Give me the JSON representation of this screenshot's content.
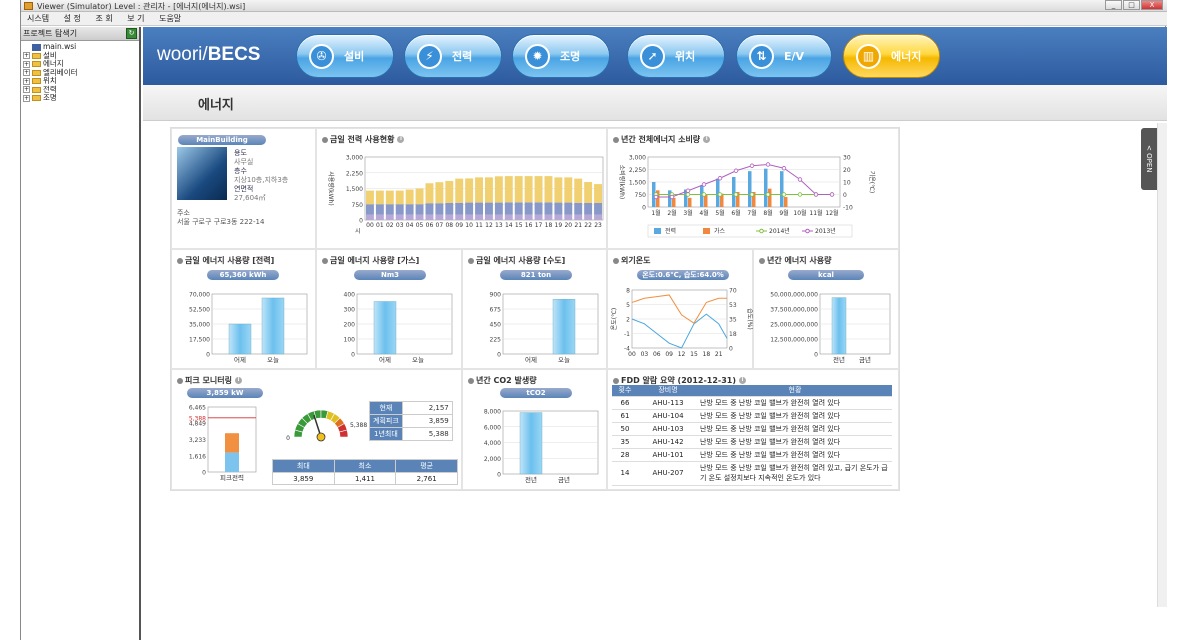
{
  "window": {
    "title": "Viewer (Simulator) Level : 관리자 - [에너지(에너지).wsi]",
    "buttons": [
      "_",
      "□",
      "X"
    ]
  },
  "menu": [
    "시스템",
    "설 정",
    "조 회",
    "보 기",
    "도움말"
  ],
  "sidebar": {
    "header": "프로젝트 탐색기",
    "root": "main.wsi",
    "items": [
      "설비",
      "에너지",
      "엘리베이터",
      "위치",
      "전력",
      "조명"
    ]
  },
  "nav": {
    "logo_a": "woori/",
    "logo_b": "BECS",
    "items": [
      {
        "label": "설비",
        "icon": "fan-icon"
      },
      {
        "label": "전력",
        "icon": "bolt-icon"
      },
      {
        "label": "조명",
        "icon": "bulb-icon"
      },
      {
        "label": "위치",
        "icon": "compass-icon"
      },
      {
        "label": "E/V",
        "icon": "elevator-icon"
      },
      {
        "label": "에너지",
        "icon": "bar-chart-icon",
        "active": true
      }
    ]
  },
  "page_title": "에너지",
  "open_tab": "< OPEN",
  "building": {
    "name": "MainBuilding",
    "use_k": "용도",
    "use_v": "사무실",
    "floors_k": "층수",
    "floors_v": "지상10층,지하3층",
    "area_k": "연면적",
    "area_v": "27,604㎡",
    "addr_k": "주소",
    "addr_v": "서울 구로구 구로3동 222-14"
  },
  "power_today": {
    "title": "금일 전력 사용현황",
    "ylabel": "사용량(kWh)",
    "xlabel": "시",
    "yticks": [
      "3,000",
      "2,250",
      "1,500",
      "750",
      "0"
    ],
    "hours": [
      "00",
      "01",
      "02",
      "03",
      "04",
      "05",
      "06",
      "07",
      "08",
      "09",
      "10",
      "11",
      "12",
      "13",
      "14",
      "15",
      "16",
      "17",
      "18",
      "19",
      "20",
      "21",
      "22",
      "23"
    ]
  },
  "annual": {
    "title": "년간 전체에너지 소비량",
    "ylabel_l": "소비량(kWh)",
    "ylabel_r": "기온(℃)",
    "yticks_l": [
      "3,000",
      "2,250",
      "1,500",
      "750",
      "0"
    ],
    "yticks_r": [
      "30",
      "20",
      "10",
      "0",
      "-10"
    ],
    "months": [
      "1월",
      "2월",
      "3월",
      "4월",
      "5월",
      "6월",
      "7월",
      "8월",
      "9월",
      "10월",
      "11월",
      "12월"
    ],
    "legend": [
      "전력",
      "가스",
      "2014년",
      "2013년"
    ]
  },
  "elec": {
    "title": "금일 에너지 사용량 [전력]",
    "pill": "65,360 kWh",
    "yticks": [
      "70,000",
      "52,500",
      "35,000",
      "17,500",
      "0"
    ],
    "cats": [
      "어제",
      "오늘"
    ]
  },
  "gas": {
    "title": "금일 에너지 사용량 [가스]",
    "pill": "Nm3",
    "yticks": [
      "400",
      "300",
      "200",
      "100",
      "0"
    ],
    "cats": [
      "어제",
      "오늘"
    ]
  },
  "water": {
    "title": "금일 에너지 사용량 [수도]",
    "pill": "821 ton",
    "yticks": [
      "900",
      "675",
      "450",
      "225",
      "0"
    ],
    "cats": [
      "어제",
      "오늘"
    ]
  },
  "outside": {
    "title": "외기온도",
    "pill": "온도:0.6℃, 습도:64.0%",
    "ylabel_l": "온도(℃)",
    "ylabel_r": "습도(%)",
    "yticks_l": [
      "8",
      "5",
      "2",
      "-1",
      "-4"
    ],
    "yticks_r": [
      "70",
      "53",
      "35",
      "18",
      "0"
    ],
    "xticks": [
      "00",
      "03",
      "06",
      "09",
      "12",
      "15",
      "18",
      "21"
    ]
  },
  "annual_use": {
    "title": "년간 에너지 사용량",
    "pill": "kcal",
    "yticks": [
      "50,000,000,000",
      "37,500,000,000",
      "25,000,000,000",
      "12,500,000,000",
      "0"
    ],
    "cats": [
      "전년",
      "금년"
    ]
  },
  "peak": {
    "title": "피크 모니터링",
    "pill": "3,859 kW",
    "yticks": [
      "6,465",
      "5,388",
      "4,849",
      "3,233",
      "1,616",
      "0"
    ],
    "xlabel": "피크전력",
    "gauge_min": "0",
    "gauge_max": "5,388",
    "rows": [
      {
        "k": "현재",
        "v": "2,157"
      },
      {
        "k": "계획피크",
        "v": "3,859"
      },
      {
        "k": "1년최대",
        "v": "5,388"
      }
    ],
    "stats_h": [
      "최대",
      "최소",
      "평균"
    ],
    "stats_v": [
      "3,859",
      "1,411",
      "2,761"
    ]
  },
  "co2": {
    "title": "년간 CO2 발생량",
    "pill": "tCO2",
    "yticks": [
      "8,000",
      "6,000",
      "4,000",
      "2,000",
      "0"
    ],
    "cats": [
      "전년",
      "금년"
    ]
  },
  "fdd": {
    "title": "FDD 알람 요약 (2012-12-31)",
    "headers": [
      "횟수",
      "장비명",
      "현황"
    ],
    "rows": [
      [
        "66",
        "AHU-113",
        "난방 모드 중 난방 코일 밸브가 완전히 열려 있다"
      ],
      [
        "61",
        "AHU-104",
        "난방 모드 중 난방 코일 밸브가 완전히 열려 있다"
      ],
      [
        "50",
        "AHU-103",
        "난방 모드 중 난방 코일 밸브가 완전히 열려 있다"
      ],
      [
        "35",
        "AHU-142",
        "난방 모드 중 난방 코일 밸브가 완전히 열려 있다"
      ],
      [
        "28",
        "AHU-101",
        "난방 모드 중 난방 코일 밸브가 완전히 열려 있다"
      ],
      [
        "14",
        "AHU-207",
        "난방 모드 중 난방 코일 밸브가 완전히 열려 있고, 급기 온도가 급기 온도 설정치보다 지속적인 온도가 있다"
      ]
    ]
  },
  "chart_data": [
    {
      "type": "bar",
      "title": "금일 전력 사용현황",
      "ylabel": "사용량(kWh)",
      "xlabel": "시",
      "ylim": [
        0,
        3000
      ],
      "categories": [
        "00",
        "01",
        "02",
        "03",
        "04",
        "05",
        "06",
        "07",
        "08",
        "09",
        "10",
        "11",
        "12",
        "13",
        "14",
        "15",
        "16",
        "17",
        "18",
        "19",
        "20",
        "21",
        "22",
        "23"
      ],
      "series": [
        {
          "values": [
            250,
            250,
            250,
            250,
            250,
            250,
            250,
            250,
            250,
            250,
            250,
            250,
            250,
            250,
            250,
            250,
            250,
            250,
            250,
            250,
            250,
            250,
            250,
            250
          ]
        },
        {
          "values": [
            500,
            500,
            500,
            500,
            500,
            500,
            550,
            550,
            560,
            570,
            580,
            580,
            580,
            580,
            590,
            590,
            590,
            590,
            590,
            580,
            580,
            570,
            560,
            560
          ]
        },
        {
          "values": [
            650,
            650,
            650,
            650,
            700,
            750,
            950,
            1000,
            1050,
            1150,
            1150,
            1200,
            1200,
            1250,
            1250,
            1250,
            1250,
            1250,
            1250,
            1200,
            1200,
            1150,
            1000,
            900
          ]
        }
      ]
    },
    {
      "type": "bar",
      "title": "년간 전체에너지 소비량",
      "ylabel": "소비량(kWh)",
      "ylim": [
        0,
        3000
      ],
      "categories": [
        "1월",
        "2월",
        "3월",
        "4월",
        "5월",
        "6월",
        "7월",
        "8월",
        "9월",
        "10월",
        "11월",
        "12월"
      ],
      "series": [
        {
          "name": "전력",
          "values": [
            1500,
            1000,
            1050,
            1300,
            1700,
            1800,
            2150,
            2300,
            2150,
            0,
            0,
            0
          ]
        },
        {
          "name": "가스",
          "values": [
            1000,
            550,
            550,
            750,
            800,
            900,
            900,
            1100,
            600,
            0,
            0,
            0
          ]
        }
      ]
    },
    {
      "type": "line",
      "title": "년간 전체에너지 소비량",
      "ylabel": "기온(℃)",
      "ylim": [
        -10,
        30
      ],
      "categories": [
        "1월",
        "2월",
        "3월",
        "4월",
        "5월",
        "6월",
        "7월",
        "8월",
        "9월",
        "10월",
        "11월",
        "12월"
      ],
      "series": [
        {
          "name": "2014년",
          "values": [
            0,
            0,
            0,
            0,
            0,
            0,
            0,
            0,
            0,
            0,
            0,
            0
          ]
        },
        {
          "name": "2013년",
          "values": [
            -2,
            -2,
            3,
            8,
            13,
            19,
            23,
            24,
            21,
            12,
            0,
            0
          ]
        }
      ]
    },
    {
      "type": "bar",
      "title": "금일 에너지 사용량 [전력]",
      "ylim": [
        0,
        70000
      ],
      "categories": [
        "어제",
        "오늘"
      ],
      "values": [
        35000,
        65360
      ]
    },
    {
      "type": "bar",
      "title": "금일 에너지 사용량 [가스]",
      "ylim": [
        0,
        400
      ],
      "categories": [
        "어제",
        "오늘"
      ],
      "values": [
        350,
        0
      ]
    },
    {
      "type": "bar",
      "title": "금일 에너지 사용량 [수도]",
      "ylim": [
        0,
        900
      ],
      "categories": [
        "어제",
        "오늘"
      ],
      "values": [
        0,
        821
      ]
    },
    {
      "type": "line",
      "title": "외기온도",
      "ylabel": "온도(℃)",
      "ylim": [
        -4,
        8
      ],
      "x": [
        0,
        3,
        6,
        9,
        12,
        15,
        18,
        21,
        23
      ],
      "series": [
        {
          "name": "온도",
          "values": [
            2,
            1,
            -1,
            -3,
            -4,
            1,
            3,
            1,
            -2
          ]
        },
        {
          "name": "습도",
          "values": [
            55,
            60,
            62,
            64,
            40,
            30,
            55,
            60,
            60
          ]
        }
      ]
    },
    {
      "type": "bar",
      "title": "년간 에너지 사용량",
      "ylim": [
        0,
        50000000000
      ],
      "categories": [
        "전년",
        "금년"
      ],
      "values": [
        47000000000,
        0
      ]
    },
    {
      "type": "bar",
      "title": "피크 모니터링",
      "ylim": [
        0,
        6465
      ],
      "categories": [
        "피크전력"
      ],
      "values": [
        3859
      ]
    },
    {
      "type": "bar",
      "title": "년간 CO2 발생량",
      "ylim": [
        0,
        8000
      ],
      "categories": [
        "전년",
        "금년"
      ],
      "values": [
        7800,
        0
      ]
    }
  ]
}
